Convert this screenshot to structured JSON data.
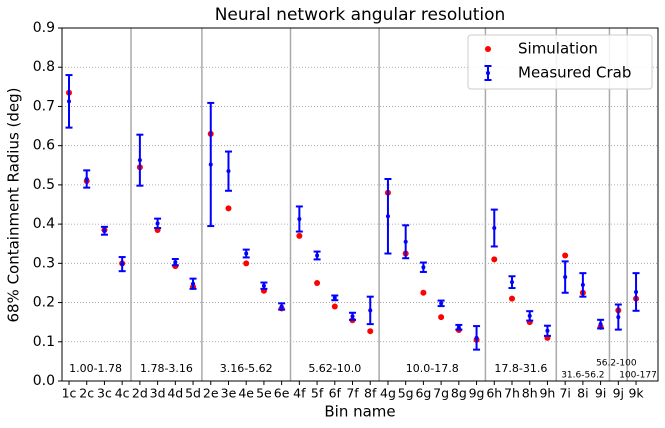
{
  "chart_data": {
    "type": "errorbar",
    "title": "Neural network angular resolution",
    "xlabel": "Bin name",
    "ylabel": "68% Containment Radius (deg)",
    "categories": [
      "1c",
      "2c",
      "3c",
      "4c",
      "2d",
      "3d",
      "4d",
      "5d",
      "2e",
      "3e",
      "4e",
      "5e",
      "6e",
      "4f",
      "5f",
      "6f",
      "7f",
      "8f",
      "4g",
      "5g",
      "6g",
      "7g",
      "8g",
      "9g",
      "6h",
      "7h",
      "8h",
      "9h",
      "7i",
      "8i",
      "9i",
      "9j",
      "9k"
    ],
    "ylim": [
      0,
      0.9
    ],
    "yticks": [
      {
        "value": 0,
        "label": "0.0"
      },
      0.1,
      0.2,
      0.3,
      0.4,
      0.5,
      0.6,
      0.7,
      0.8,
      0.9
    ],
    "grid": true,
    "legend": "upper right",
    "groups": [
      {
        "label": "1.00-1.78",
        "categories": [
          "1c",
          "2c",
          "3c",
          "4c"
        ]
      },
      {
        "label": "1.78-3.16",
        "categories": [
          "2d",
          "3d",
          "4d",
          "5d"
        ]
      },
      {
        "label": "3.16-5.62",
        "categories": [
          "2e",
          "3e",
          "4e",
          "5e",
          "6e"
        ]
      },
      {
        "label": "5.62-10.0",
        "categories": [
          "4f",
          "5f",
          "6f",
          "7f",
          "8f"
        ]
      },
      {
        "label": "10.0-17.8",
        "categories": [
          "4g",
          "5g",
          "6g",
          "7g",
          "8g",
          "9g"
        ]
      },
      {
        "label": "17.8-31.6",
        "categories": [
          "6h",
          "7h",
          "8h",
          "9h"
        ]
      },
      {
        "label": "31.6-56.2",
        "categories": [
          "7i",
          "8i",
          "9i"
        ]
      },
      {
        "label": "56.2-100",
        "categories": [
          "9j"
        ]
      },
      {
        "label": "100-177",
        "categories": [
          "9k"
        ]
      }
    ],
    "series": [
      {
        "name": "Simulation",
        "color": "#ff0000",
        "values": [
          0.735,
          0.51,
          0.385,
          0.3,
          0.545,
          0.385,
          0.293,
          0.24,
          0.63,
          0.44,
          0.3,
          0.23,
          0.185,
          0.37,
          0.25,
          0.19,
          0.155,
          0.127,
          0.48,
          0.325,
          0.225,
          0.163,
          0.13,
          0.105,
          0.31,
          0.21,
          0.15,
          0.11,
          0.32,
          0.225,
          0.138,
          0.18,
          0.21
        ]
      },
      {
        "name": "Measured Crab",
        "color": "#0000ff",
        "values": [
          0.713,
          0.515,
          0.383,
          0.298,
          0.563,
          0.402,
          0.303,
          0.248,
          0.552,
          0.535,
          0.325,
          0.243,
          0.19,
          0.413,
          0.32,
          0.212,
          0.165,
          0.18,
          0.42,
          0.355,
          0.29,
          0.198,
          0.137,
          0.11,
          0.39,
          0.252,
          0.166,
          0.128,
          0.265,
          0.245,
          0.145,
          0.163,
          0.227
        ],
        "errors": [
          0.067,
          0.022,
          0.01,
          0.018,
          0.065,
          0.012,
          0.008,
          0.013,
          0.157,
          0.05,
          0.01,
          0.008,
          0.008,
          0.032,
          0.01,
          0.006,
          0.009,
          0.035,
          0.095,
          0.042,
          0.012,
          0.007,
          0.006,
          0.03,
          0.047,
          0.015,
          0.012,
          0.013,
          0.04,
          0.03,
          0.011,
          0.032,
          0.048
        ]
      }
    ]
  }
}
